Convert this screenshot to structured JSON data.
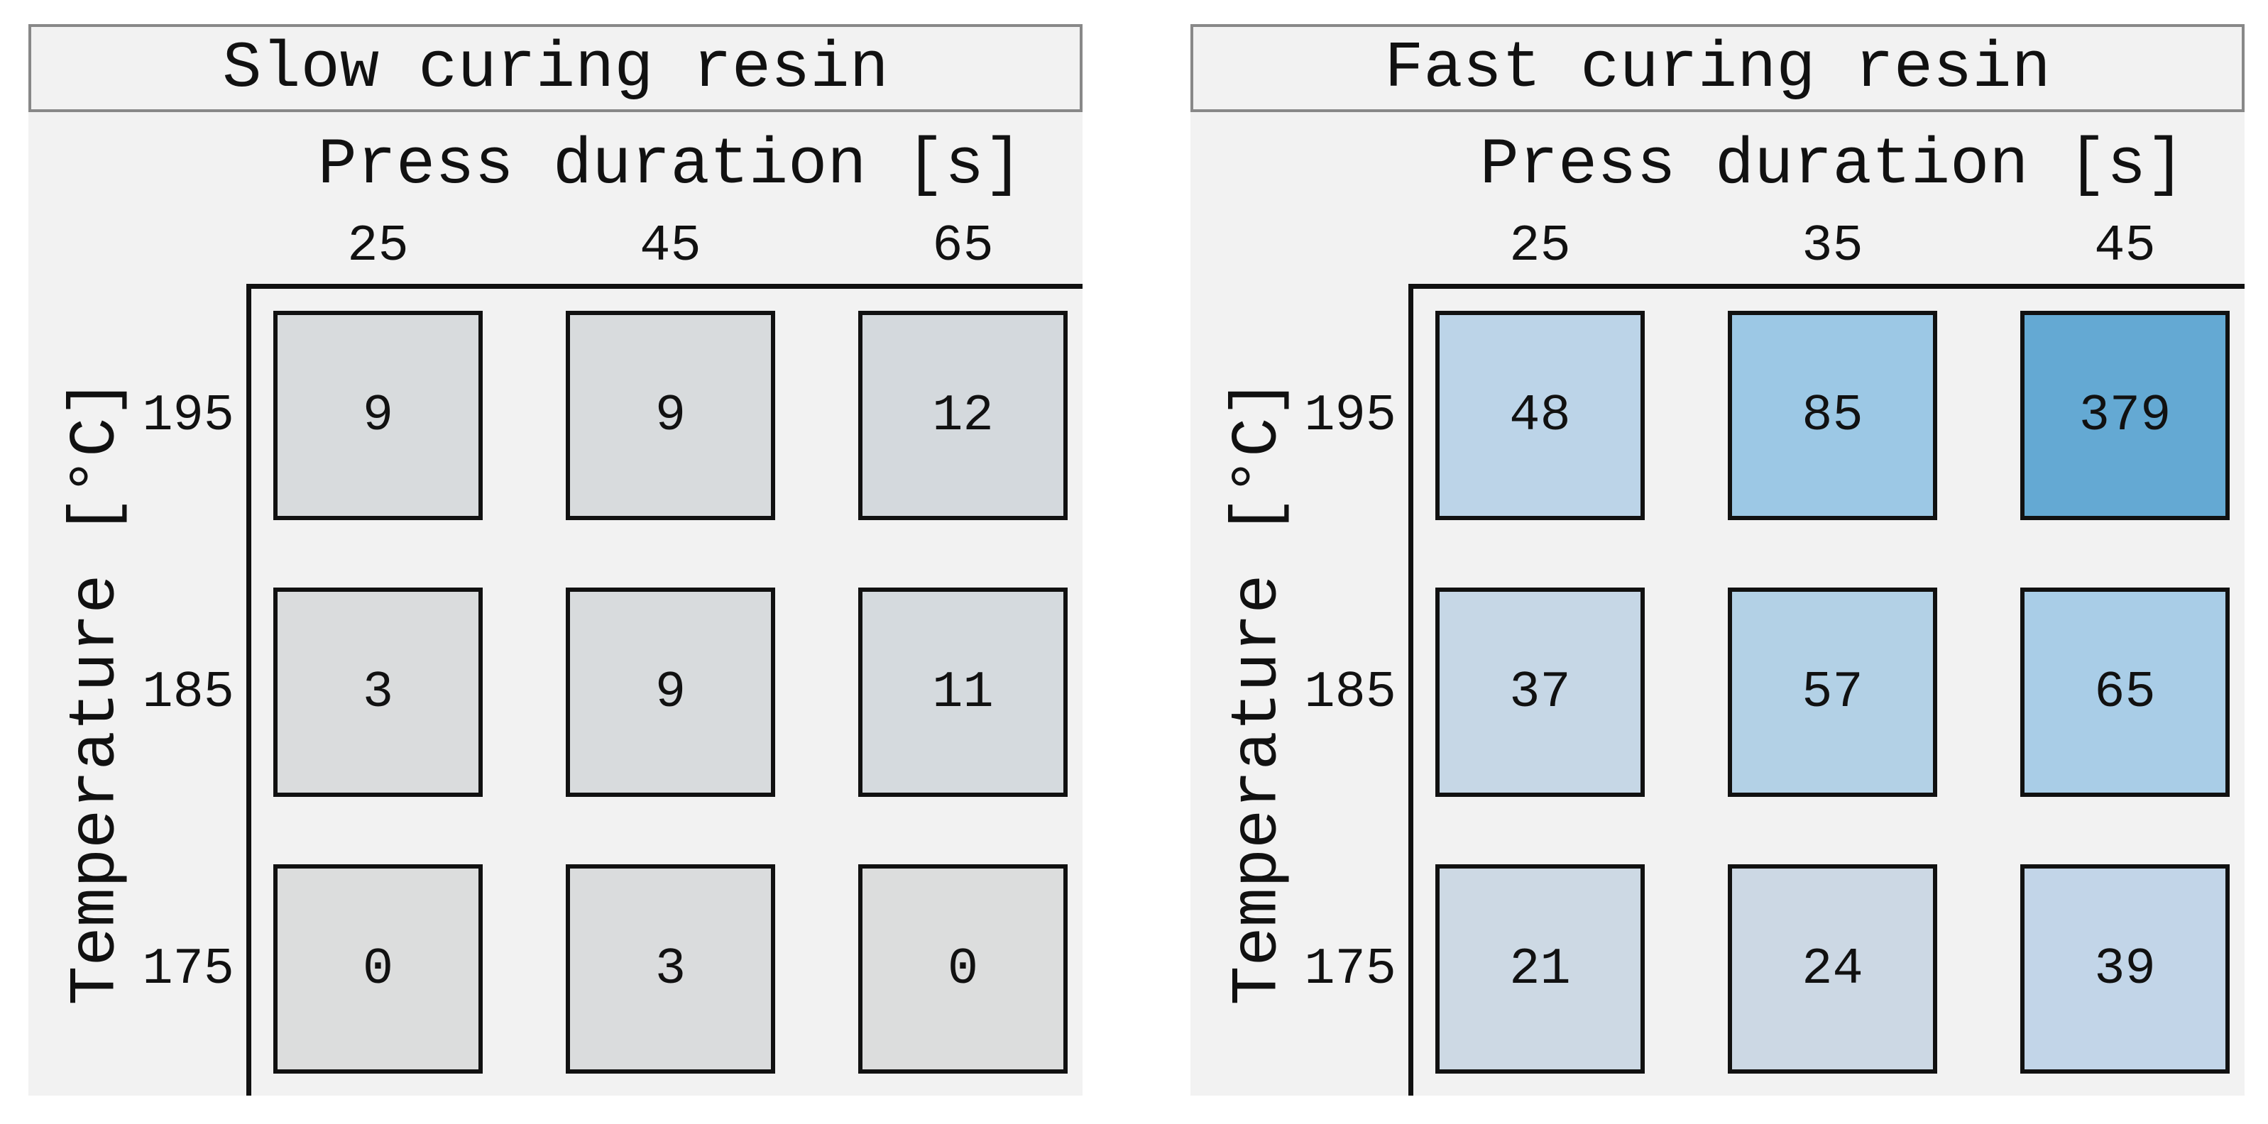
{
  "figure": {
    "background": "#ffffff",
    "panel_background": "#f2f2f2",
    "title_border_color": "#888888",
    "spine_color": "#111111",
    "text_color": "#111111",
    "colormap": "Blues"
  },
  "chart_data": [
    {
      "type": "heatmap",
      "title": "Slow curing resin",
      "xlabel": "Press duration [s]",
      "ylabel": "Temperature [°C]",
      "x_ticks": [
        "25",
        "45",
        "65"
      ],
      "y_ticks": [
        "195",
        "185",
        "175"
      ],
      "matrix": [
        [
          9,
          9,
          12
        ],
        [
          3,
          9,
          11
        ],
        [
          0,
          3,
          0
        ]
      ],
      "legend": "none",
      "grid": "off",
      "cells": [
        {
          "value": "9",
          "color": "#d8dbdd"
        },
        {
          "value": "9",
          "color": "#d8dbdd"
        },
        {
          "value": "12",
          "color": "#d4d9dd"
        },
        {
          "value": "3",
          "color": "#dadcdd"
        },
        {
          "value": "9",
          "color": "#d8dbdd"
        },
        {
          "value": "11",
          "color": "#d5dade"
        },
        {
          "value": "0",
          "color": "#dcdddd"
        },
        {
          "value": "3",
          "color": "#dadcdd"
        },
        {
          "value": "0",
          "color": "#dcdddd"
        }
      ]
    },
    {
      "type": "heatmap",
      "title": "Fast curing resin",
      "xlabel": "Press duration [s]",
      "ylabel": "Temperature [°C]",
      "x_ticks": [
        "25",
        "35",
        "45"
      ],
      "y_ticks": [
        "195",
        "185",
        "175"
      ],
      "matrix": [
        [
          48,
          85,
          379
        ],
        [
          37,
          57,
          65
        ],
        [
          21,
          24,
          39
        ]
      ],
      "legend": "none",
      "grid": "off",
      "cells": [
        {
          "value": "48",
          "color": "#bcd4e8"
        },
        {
          "value": "85",
          "color": "#9cc8e5"
        },
        {
          "value": "379",
          "color": "#64a9d3"
        },
        {
          "value": "37",
          "color": "#c6d7e6"
        },
        {
          "value": "57",
          "color": "#b3d1e6"
        },
        {
          "value": "65",
          "color": "#a9cde7"
        },
        {
          "value": "21",
          "color": "#cdd9e4"
        },
        {
          "value": "24",
          "color": "#ccd8e4"
        },
        {
          "value": "39",
          "color": "#c2d5e8"
        }
      ]
    }
  ]
}
